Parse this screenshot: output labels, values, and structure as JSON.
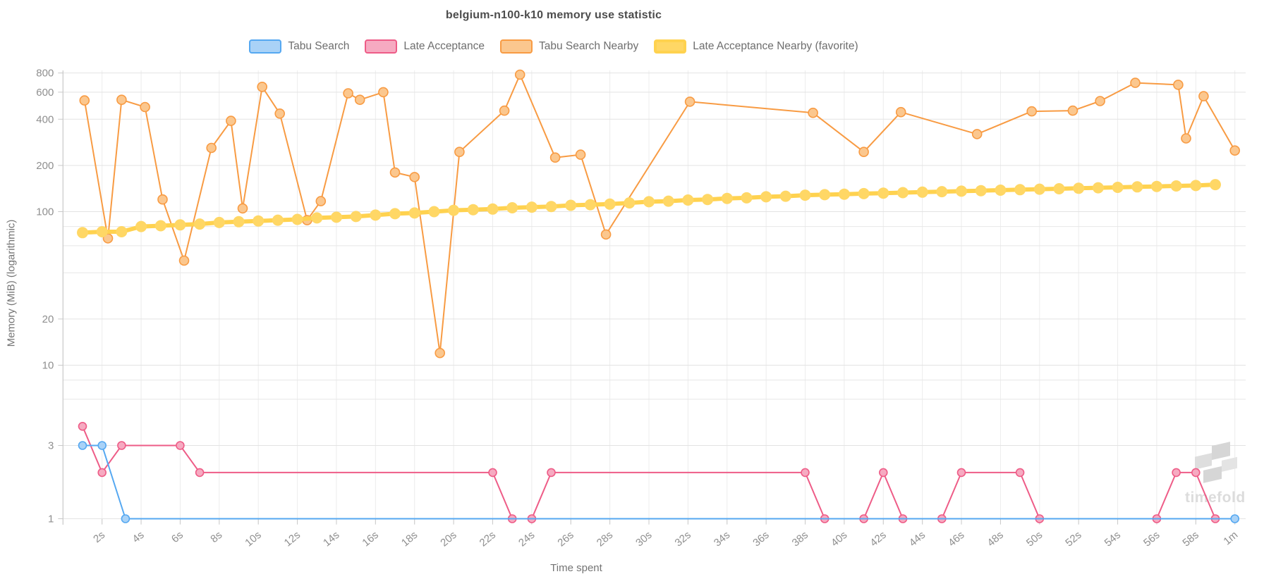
{
  "title": "belgium-n100-k10 memory use statistic",
  "watermark": "timefold",
  "y_axis": {
    "title": "Memory (MiB) (logarithmic)",
    "labeled_ticks": [
      {
        "v": 800,
        "label": "800"
      },
      {
        "v": 600,
        "label": "600"
      },
      {
        "v": 400,
        "label": "400"
      },
      {
        "v": 200,
        "label": "200"
      },
      {
        "v": 100,
        "label": "100"
      },
      {
        "v": 20,
        "label": "20"
      },
      {
        "v": 10,
        "label": "10"
      },
      {
        "v": 3,
        "label": "3"
      },
      {
        "v": 1,
        "label": "1"
      }
    ],
    "minor_gridlines": [
      80,
      60,
      40,
      8,
      6
    ]
  },
  "x_axis": {
    "title": "Time spent",
    "ticks": [
      {
        "t": 2,
        "label": "2s"
      },
      {
        "t": 4,
        "label": "4s"
      },
      {
        "t": 6,
        "label": "6s"
      },
      {
        "t": 8,
        "label": "8s"
      },
      {
        "t": 10,
        "label": "10s"
      },
      {
        "t": 12,
        "label": "12s"
      },
      {
        "t": 14,
        "label": "14s"
      },
      {
        "t": 16,
        "label": "16s"
      },
      {
        "t": 18,
        "label": "18s"
      },
      {
        "t": 20,
        "label": "20s"
      },
      {
        "t": 22,
        "label": "22s"
      },
      {
        "t": 24,
        "label": "24s"
      },
      {
        "t": 26,
        "label": "26s"
      },
      {
        "t": 28,
        "label": "28s"
      },
      {
        "t": 30,
        "label": "30s"
      },
      {
        "t": 32,
        "label": "32s"
      },
      {
        "t": 34,
        "label": "34s"
      },
      {
        "t": 36,
        "label": "36s"
      },
      {
        "t": 38,
        "label": "38s"
      },
      {
        "t": 40,
        "label": "40s"
      },
      {
        "t": 42,
        "label": "42s"
      },
      {
        "t": 44,
        "label": "44s"
      },
      {
        "t": 46,
        "label": "46s"
      },
      {
        "t": 48,
        "label": "48s"
      },
      {
        "t": 50,
        "label": "50s"
      },
      {
        "t": 52,
        "label": "52s"
      },
      {
        "t": 54,
        "label": "54s"
      },
      {
        "t": 56,
        "label": "56s"
      },
      {
        "t": 58,
        "label": "58s"
      },
      {
        "t": 60,
        "label": "1m"
      }
    ]
  },
  "chart_data": {
    "type": "line",
    "title": "belgium-n100-k10 memory use statistic",
    "xlabel": "Time spent",
    "ylabel": "Memory (MiB) (logarithmic)",
    "x_unit": "seconds",
    "y_scale": "log",
    "ylim": [
      1,
      970
    ],
    "xlim": [
      0,
      61
    ],
    "grid": true,
    "legend_position": "top-center",
    "draw_order": [
      1,
      0,
      2,
      3
    ],
    "series": [
      {
        "name": "Tabu Search",
        "color": "#55a8f1",
        "marker_fill": "#a9d2f7",
        "line_width": 2,
        "marker_r": 5.5,
        "marker_stroke": 1.6,
        "swatch_border": 2.5,
        "points": [
          [
            1,
            3
          ],
          [
            2,
            3
          ],
          [
            3.2,
            1
          ],
          [
            60,
            1
          ]
        ]
      },
      {
        "name": "Late Acceptance",
        "color": "#ee5c87",
        "marker_fill": "#f6aac1",
        "line_width": 2,
        "marker_r": 5.5,
        "marker_stroke": 1.6,
        "swatch_border": 2.5,
        "points": [
          [
            1,
            4
          ],
          [
            2,
            2
          ],
          [
            3,
            3
          ],
          [
            6,
            3
          ],
          [
            7,
            2
          ],
          [
            22,
            2
          ],
          [
            23,
            1
          ],
          [
            24,
            1
          ],
          [
            25,
            2
          ],
          [
            38,
            2
          ],
          [
            39,
            1
          ],
          [
            41,
            1
          ],
          [
            42,
            2
          ],
          [
            43,
            1
          ],
          [
            45,
            1
          ],
          [
            46,
            2
          ],
          [
            49,
            2
          ],
          [
            50,
            1
          ],
          [
            56,
            1
          ],
          [
            57,
            2
          ],
          [
            58,
            2
          ],
          [
            59,
            1
          ]
        ]
      },
      {
        "name": "Tabu Search Nearby",
        "color": "#f89b43",
        "marker_fill": "#fbc78e",
        "line_width": 2,
        "marker_r": 6.5,
        "marker_stroke": 1.6,
        "swatch_border": 2.5,
        "points": [
          [
            1.1,
            530
          ],
          [
            2.3,
            67
          ],
          [
            3,
            535
          ],
          [
            4.2,
            480
          ],
          [
            5.1,
            120
          ],
          [
            6.2,
            48
          ],
          [
            7.6,
            260
          ],
          [
            8.6,
            390
          ],
          [
            9.2,
            105
          ],
          [
            10.2,
            650
          ],
          [
            11.1,
            435
          ],
          [
            12.5,
            88
          ],
          [
            13.2,
            117
          ],
          [
            14.6,
            590
          ],
          [
            15.2,
            535
          ],
          [
            16.4,
            600
          ],
          [
            17,
            180
          ],
          [
            18,
            168
          ],
          [
            19.3,
            12
          ],
          [
            20.3,
            245
          ],
          [
            22.6,
            455
          ],
          [
            23.4,
            780
          ],
          [
            25.2,
            225
          ],
          [
            26.5,
            235
          ],
          [
            27.8,
            71
          ],
          [
            32.1,
            520
          ],
          [
            38.4,
            440
          ],
          [
            41,
            245
          ],
          [
            42.9,
            445
          ],
          [
            46.8,
            320
          ],
          [
            49.6,
            450
          ],
          [
            51.7,
            455
          ],
          [
            53.1,
            525
          ],
          [
            54.9,
            690
          ],
          [
            57.1,
            670
          ],
          [
            57.5,
            300
          ],
          [
            58.4,
            565
          ],
          [
            60,
            250
          ]
        ]
      },
      {
        "name": "Late Acceptance Nearby (favorite)",
        "color": "#ffd24f",
        "marker_fill": "#ffd765",
        "line_width": 6,
        "marker_r": 8,
        "marker_stroke": 0,
        "swatch_border": 4,
        "points": [
          [
            1,
            73
          ],
          [
            2,
            74
          ],
          [
            3,
            74
          ],
          [
            4,
            80
          ],
          [
            5,
            81
          ],
          [
            6,
            82
          ],
          [
            7,
            83
          ],
          [
            8,
            85
          ],
          [
            9,
            86
          ],
          [
            10,
            87
          ],
          [
            11,
            88
          ],
          [
            12,
            89
          ],
          [
            13,
            91
          ],
          [
            14,
            92
          ],
          [
            15,
            93
          ],
          [
            16,
            95
          ],
          [
            17,
            97
          ],
          [
            18,
            98
          ],
          [
            19,
            100
          ],
          [
            20,
            102
          ],
          [
            21,
            103
          ],
          [
            22,
            104
          ],
          [
            23,
            106
          ],
          [
            24,
            107
          ],
          [
            25,
            108
          ],
          [
            26,
            110
          ],
          [
            27,
            111
          ],
          [
            28,
            112
          ],
          [
            29,
            114
          ],
          [
            30,
            116
          ],
          [
            31,
            117
          ],
          [
            32,
            119
          ],
          [
            33,
            120
          ],
          [
            34,
            122
          ],
          [
            35,
            123
          ],
          [
            36,
            125
          ],
          [
            37,
            126
          ],
          [
            38,
            128
          ],
          [
            39,
            129
          ],
          [
            40,
            130
          ],
          [
            41,
            131
          ],
          [
            42,
            132
          ],
          [
            43,
            133
          ],
          [
            44,
            134
          ],
          [
            45,
            135
          ],
          [
            46,
            136
          ],
          [
            47,
            137
          ],
          [
            48,
            138
          ],
          [
            49,
            139
          ],
          [
            50,
            140
          ],
          [
            51,
            141
          ],
          [
            52,
            142
          ],
          [
            53,
            143
          ],
          [
            54,
            144
          ],
          [
            55,
            145
          ],
          [
            56,
            146
          ],
          [
            57,
            147
          ],
          [
            58,
            148
          ],
          [
            59,
            150
          ]
        ]
      }
    ]
  }
}
